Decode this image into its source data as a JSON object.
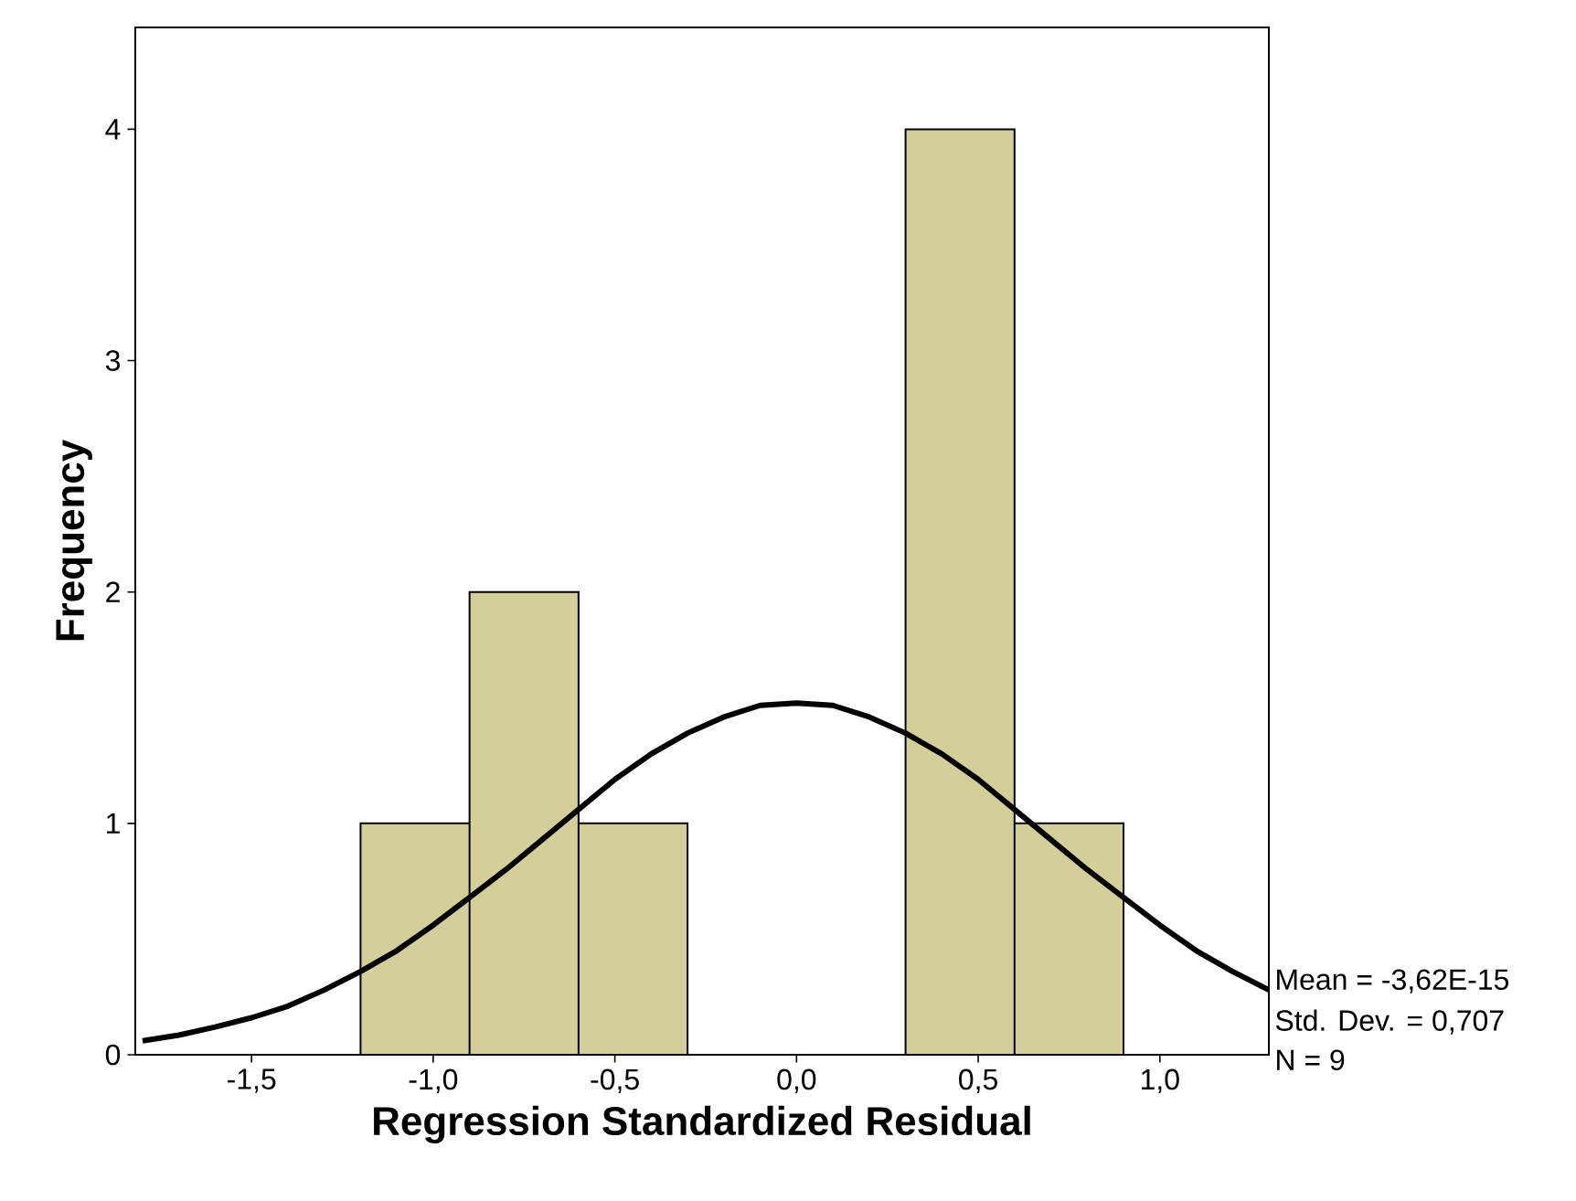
{
  "chart_data": {
    "type": "histogram",
    "xlabel": "Regression Standardized Residual",
    "ylabel": "Frequency",
    "bins": [
      -1.2,
      -0.9,
      -0.6,
      -0.3,
      0,
      0.3,
      0.6,
      0.9
    ],
    "values": [
      1,
      2,
      1,
      0,
      0,
      4,
      1
    ],
    "color": "#d4cf9a",
    "series": [
      {
        "type": "line",
        "color": "#000000",
        "x": [
          -1.8,
          -1.7,
          -1.6,
          -1.5,
          -1.4,
          -1.3,
          -1.2,
          -1.1,
          -1.0,
          -0.9,
          -0.8,
          -0.7,
          -0.6,
          -0.5,
          -0.4,
          -0.3,
          -0.2,
          -0.1,
          0,
          0.1,
          0.2,
          0.3,
          0.4,
          0.5,
          0.6,
          0.7,
          0.8,
          0.9,
          1.0,
          1.1,
          1.2,
          1.3
        ],
        "values": [
          0.06,
          0.085,
          0.12,
          0.16,
          0.21,
          0.28,
          0.36,
          0.45,
          0.56,
          0.68,
          0.8,
          0.93,
          1.06,
          1.19,
          1.3,
          1.39,
          1.46,
          1.51,
          1.52,
          1.51,
          1.46,
          1.39,
          1.3,
          1.19,
          1.06,
          0.93,
          0.8,
          0.68,
          0.56,
          0.45,
          0.36,
          0.28
        ]
      }
    ],
    "xlim": [
      -1.82,
      1.3
    ],
    "ylim": [
      0,
      4.44
    ],
    "xticks": [
      {
        "value": -1.5,
        "label": "-1,5"
      },
      {
        "value": -1.0,
        "label": "-1,0"
      },
      {
        "value": -0.5,
        "label": "-0,5"
      },
      {
        "value": 0,
        "label": "0,0"
      },
      {
        "value": 0.5,
        "label": "0,5"
      },
      {
        "value": 1.0,
        "label": "1,0"
      }
    ],
    "yticks": [
      0,
      1,
      2,
      3,
      4
    ],
    "annotations": [
      "Mean = -3,62E-15",
      "Std. Dev. = 0,707",
      "N = 9"
    ]
  }
}
